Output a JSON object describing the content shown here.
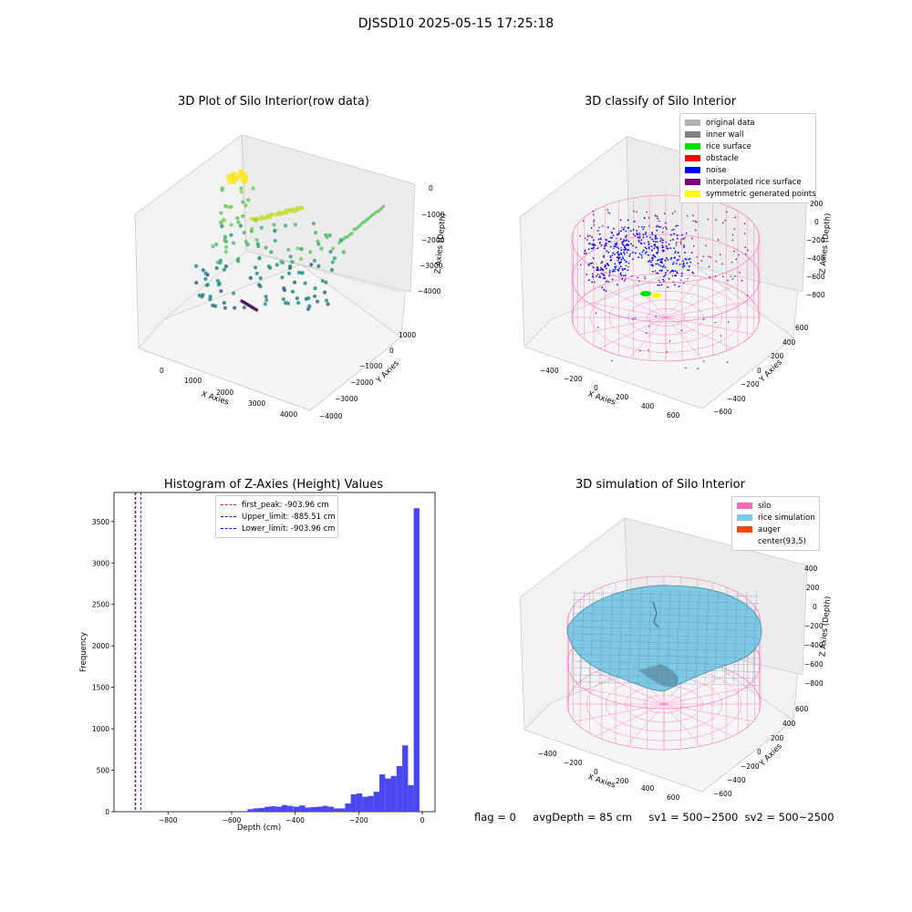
{
  "suptitle": "DJSSD10 2025-05-15 17:25:18",
  "footer": {
    "flag": "flag = 0",
    "avg_depth": "avgDepth = 85 cm",
    "sv1": "sv1 = 500~2500",
    "sv2": "sv2 = 500~2500"
  },
  "colors": {
    "hist_bar": "#4a46f2",
    "silo": "#ff69b4",
    "rice_sim": "#7ec8e3",
    "auger": "#ff4500",
    "first_peak_line": "#e02020",
    "limit_line": "#1010c0"
  },
  "chart_data": [
    {
      "type": "scatter",
      "panel": "raw",
      "title": "3D Plot of Silo Interior(row data)",
      "xlabel": "X Axies",
      "ylabel": "Y Axies",
      "zlabel": "Z Axies (Depth)",
      "x_ticks": [
        "0",
        "1000",
        "2000",
        "3000",
        "4000"
      ],
      "y_ticks": [
        "1000",
        "0",
        "−1000",
        "−2000",
        "−3000",
        "−4000"
      ],
      "z_ticks": [
        "0",
        "−1000",
        "−2000",
        "−3000",
        "−4000"
      ],
      "colormap": "viridis"
    },
    {
      "type": "scatter",
      "panel": "classify",
      "title": "3D classify of Silo Interior",
      "xlabel": "X Axies",
      "ylabel": "Y Axies",
      "zlabel": "Z Axies (Depth)",
      "x_ticks": [
        "−400",
        "−200",
        "0",
        "200",
        "400",
        "600"
      ],
      "y_ticks": [
        "600",
        "400",
        "200",
        "0",
        "−200",
        "−400",
        "−600"
      ],
      "z_ticks": [
        "200",
        "0",
        "−200",
        "−400",
        "−600",
        "−800"
      ],
      "legend": [
        {
          "label": "original data",
          "color": "#b0b0b0"
        },
        {
          "label": "inner wall",
          "color": "#808080"
        },
        {
          "label": "rice surface",
          "color": "#00e000"
        },
        {
          "label": "obstacle",
          "color": "#ff0000"
        },
        {
          "label": "noise",
          "color": "#0000ff"
        },
        {
          "label": "interpolated rice surface",
          "color": "#800080"
        },
        {
          "label": "symmetric generated points",
          "color": "#ffff00"
        }
      ]
    },
    {
      "type": "bar",
      "panel": "histogram",
      "title": "Histogram of Z-Axies (Height) Values",
      "xlabel": "Depth (cm)",
      "ylabel": "Frequency",
      "xlim": [
        -970,
        40
      ],
      "ylim": [
        0,
        3850
      ],
      "x_ticks": [
        -800,
        -600,
        -400,
        -200,
        0
      ],
      "x_tick_labels": [
        "−800",
        "−600",
        "−400",
        "−200",
        "0"
      ],
      "y_ticks": [
        0,
        500,
        1000,
        1500,
        2000,
        2500,
        3000,
        3500
      ],
      "bin_width": 18.06,
      "bin_centers": [
        -541,
        -523,
        -505,
        -487,
        -469,
        -451,
        -433,
        -415,
        -396,
        -378,
        -360,
        -342,
        -324,
        -306,
        -288,
        -270,
        -252,
        -234,
        -216,
        -198,
        -180,
        -162,
        -144,
        -126,
        -108,
        -90,
        -72,
        -54,
        -36,
        -18,
        0
      ],
      "values": [
        30,
        40,
        45,
        60,
        65,
        60,
        80,
        70,
        60,
        75,
        50,
        55,
        60,
        70,
        60,
        40,
        40,
        100,
        210,
        220,
        180,
        190,
        240,
        450,
        400,
        430,
        550,
        800,
        320,
        3660,
        0
      ],
      "vlines": [
        {
          "x": -903.96,
          "label": "first_peak: -903.96 cm",
          "color": "#e02020"
        },
        {
          "x": -885.51,
          "label": "Upper_limit: -885.51 cm",
          "color": "#1010c0"
        },
        {
          "x": -903.96,
          "label": "Lower_limit: -903.96 cm",
          "color": "#1010c0"
        }
      ]
    },
    {
      "type": "surface",
      "panel": "simulation",
      "title": "3D simulation of Silo Interior",
      "xlabel": "X Axies",
      "ylabel": "Y Axies",
      "zlabel": "Z Axies (Depth)",
      "x_ticks": [
        "−400",
        "−200",
        "0",
        "200",
        "400",
        "600"
      ],
      "y_ticks": [
        "600",
        "400",
        "200",
        "0",
        "−200",
        "−400",
        "−600"
      ],
      "z_ticks": [
        "400",
        "200",
        "0",
        "−200",
        "−400",
        "−600",
        "−800"
      ],
      "legend": [
        {
          "label": "silo",
          "color": "#ff69b4"
        },
        {
          "label": "rice simulation",
          "color": "#7ec8e3"
        },
        {
          "label": "auger",
          "color": "#ff4500"
        },
        {
          "label": "center(93,5)",
          "color": ""
        }
      ]
    }
  ]
}
